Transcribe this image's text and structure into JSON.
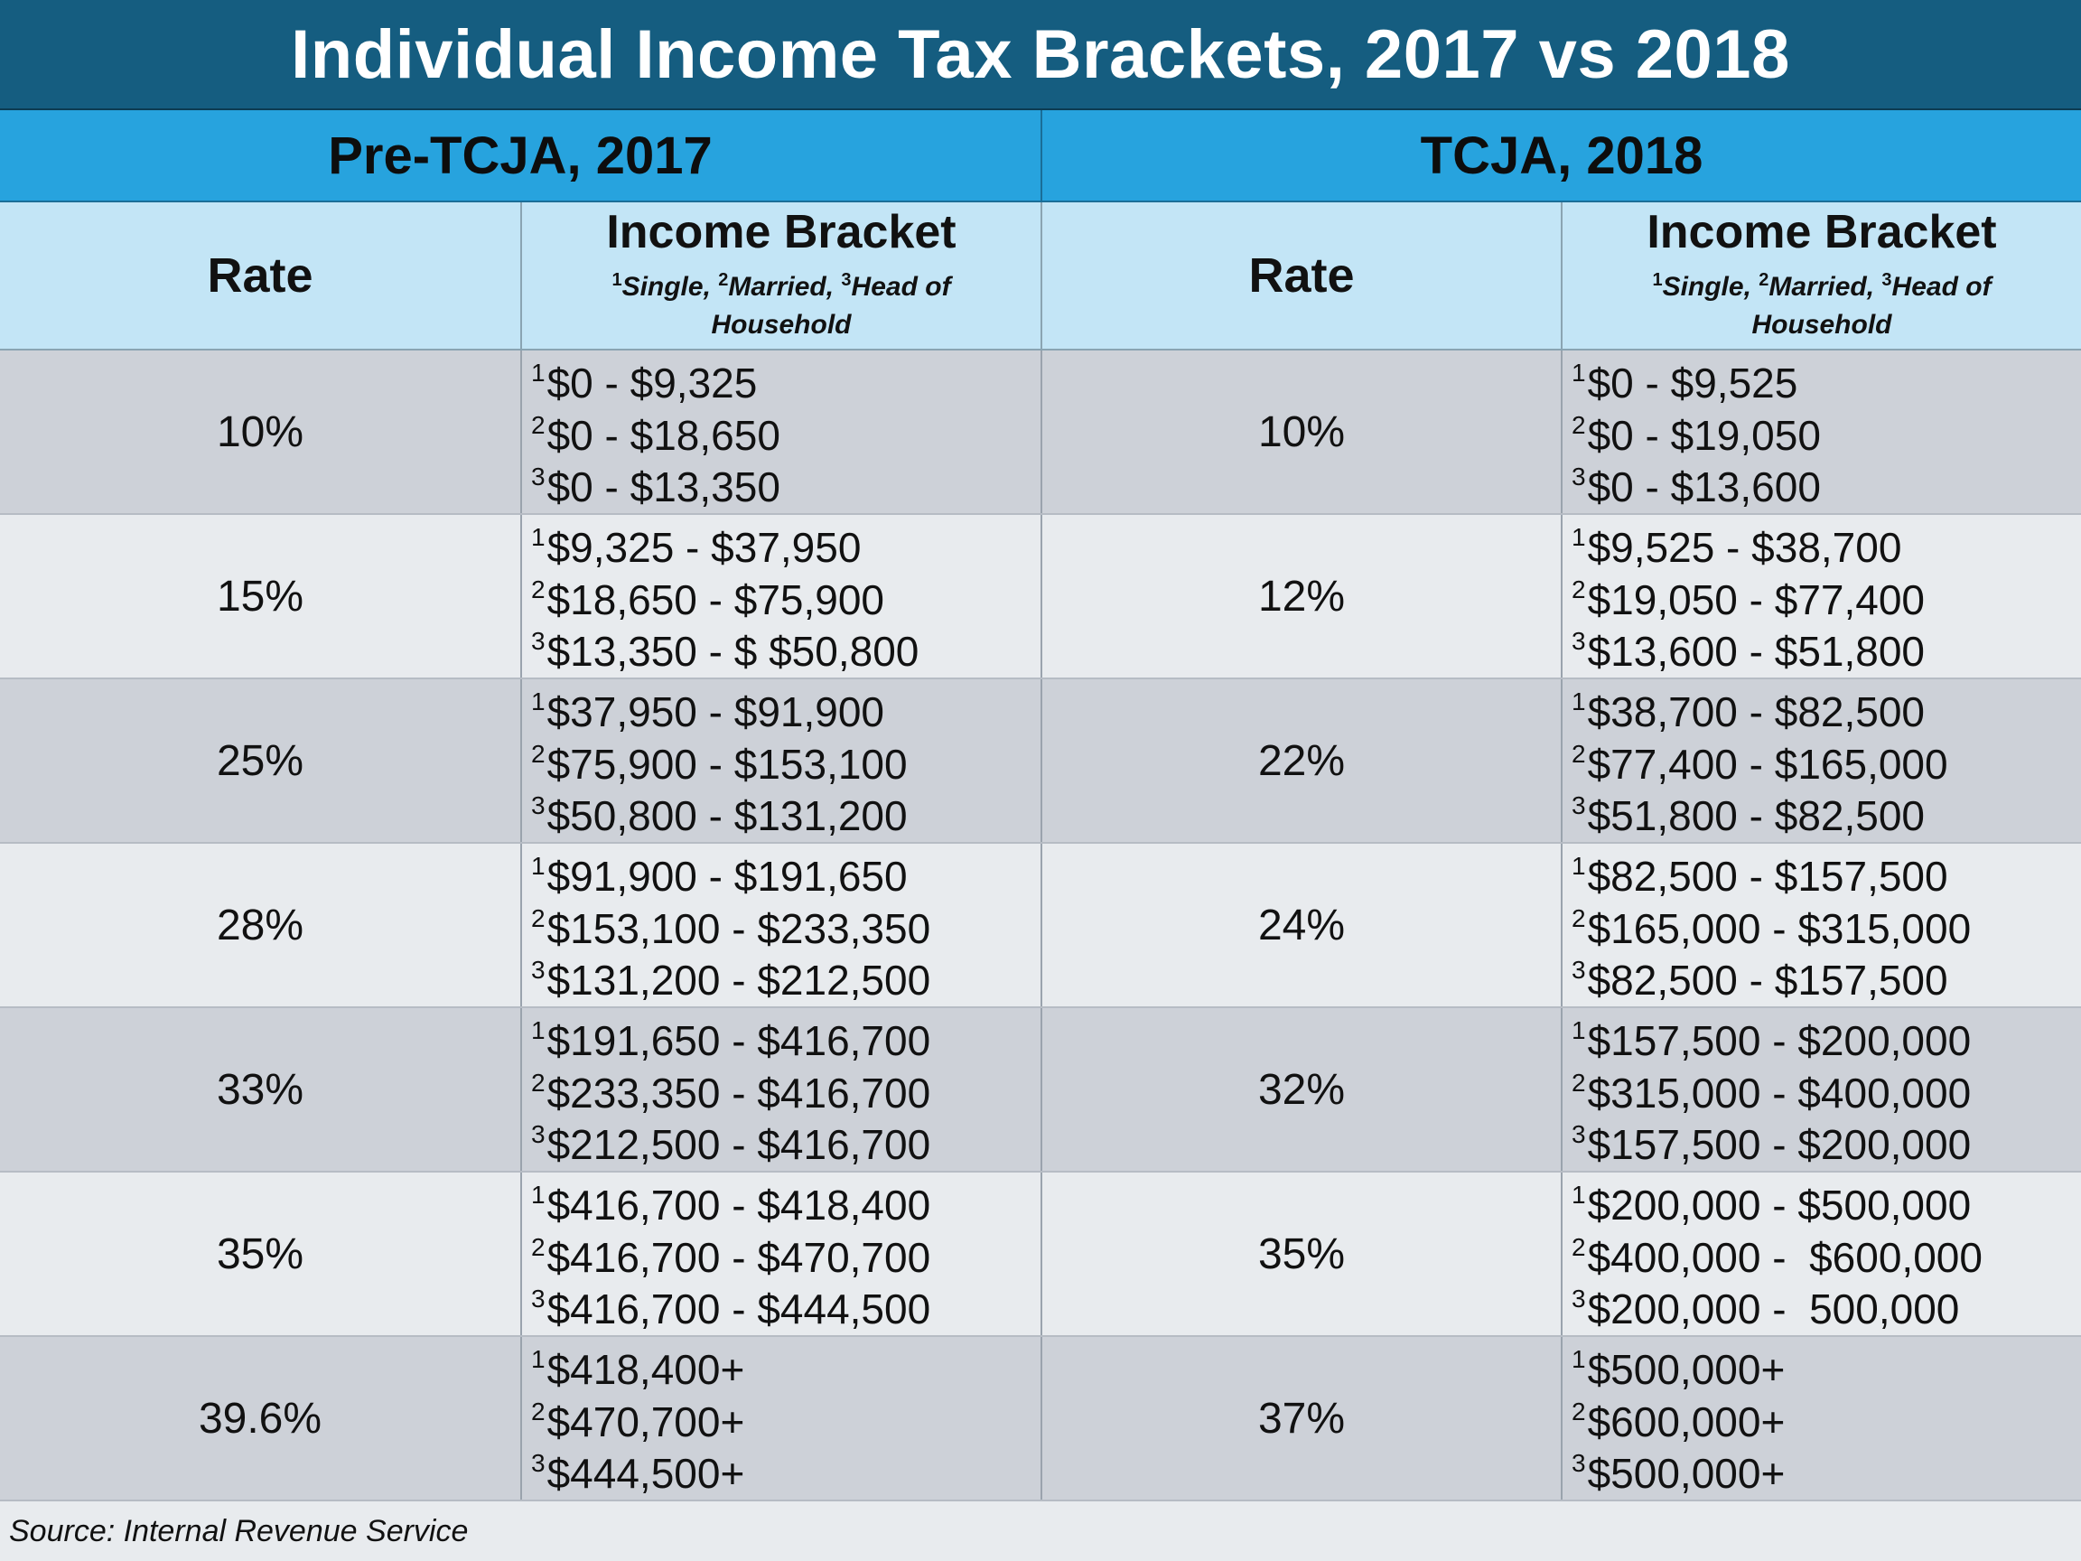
{
  "title": "Individual Income Tax Brackets, 2017 vs 2018",
  "periods": {
    "left": "Pre-TCJA, 2017",
    "right": "TCJA, 2018"
  },
  "headers": {
    "rate": "Rate",
    "bracket_title": "Income Bracket",
    "filer_single": "Single, ",
    "filer_married": "Married, ",
    "filer_hoh": "Head of Household",
    "sup1": "1",
    "sup2": "2",
    "sup3": "3"
  },
  "rows": [
    {
      "rate_2017": "10%",
      "ranges_2017": [
        "$0 - $9,325",
        "$0 - $18,650",
        "$0 - $13,350"
      ],
      "rate_2018": "10%",
      "ranges_2018": [
        "$0 - $9,525",
        "$0 - $19,050",
        "$0 - $13,600"
      ]
    },
    {
      "rate_2017": "15%",
      "ranges_2017": [
        "$9,325 - $37,950",
        "$18,650 - $75,900",
        "$13,350 - $ $50,800"
      ],
      "rate_2018": "12%",
      "ranges_2018": [
        "$9,525 - $38,700",
        "$19,050 - $77,400",
        "$13,600 - $51,800"
      ]
    },
    {
      "rate_2017": "25%",
      "ranges_2017": [
        "$37,950 - $91,900",
        "$75,900 - $153,100",
        "$50,800 - $131,200"
      ],
      "rate_2018": "22%",
      "ranges_2018": [
        "$38,700 - $82,500",
        "$77,400 - $165,000",
        "$51,800 - $82,500"
      ]
    },
    {
      "rate_2017": "28%",
      "ranges_2017": [
        "$91,900 - $191,650",
        "$153,100 - $233,350",
        "$131,200 - $212,500"
      ],
      "rate_2018": "24%",
      "ranges_2018": [
        "$82,500 - $157,500",
        "$165,000 - $315,000",
        "$82,500 - $157,500"
      ]
    },
    {
      "rate_2017": "33%",
      "ranges_2017": [
        "$191,650 - $416,700",
        "$233,350 - $416,700",
        "$212,500 - $416,700"
      ],
      "rate_2018": "32%",
      "ranges_2018": [
        "$157,500 - $200,000",
        "$315,000 - $400,000",
        "$157,500 - $200,000"
      ]
    },
    {
      "rate_2017": "35%",
      "ranges_2017": [
        "$416,700 - $418,400",
        "$416,700 - $470,700",
        "$416,700 - $444,500"
      ],
      "rate_2018": "35%",
      "ranges_2018": [
        "$200,000 - $500,000",
        "$400,000 -  $600,000",
        "$200,000 -  500,000"
      ]
    },
    {
      "rate_2017": "39.6%",
      "ranges_2017": [
        "$418,400+",
        "$470,700+",
        "$444,500+"
      ],
      "rate_2018": "37%",
      "ranges_2018": [
        "$500,000+",
        "$600,000+",
        "$500,000+"
      ]
    }
  ],
  "source": "Source: Internal Revenue Service",
  "colors": {
    "title_bg": "#155d80",
    "period_bg": "#27a3de",
    "header_bg": "#c3e5f6",
    "row_dark": "#cdd1d8",
    "row_light": "#e8ebee"
  }
}
